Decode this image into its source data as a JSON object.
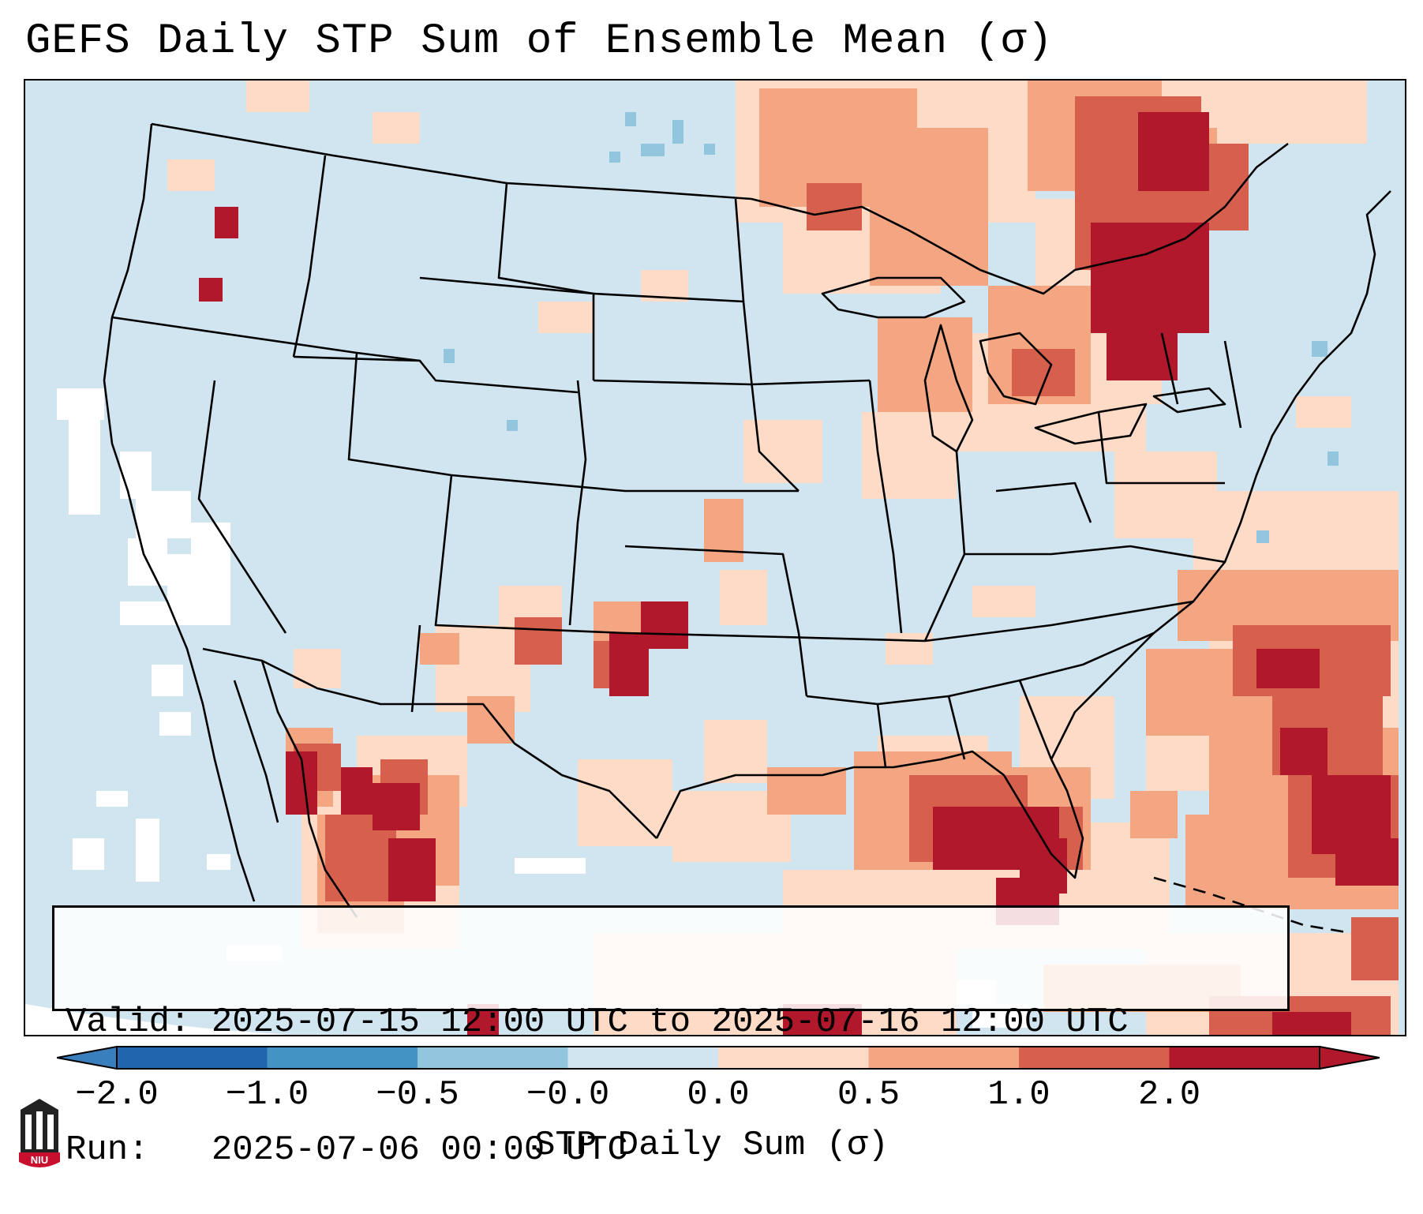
{
  "title": "GEFS Daily STP Sum of Ensemble Mean (σ)",
  "info": {
    "valid_label": "Valid:",
    "valid_value": "2025-07-15 12:00 UTC to 2025-07-16 12:00 UTC",
    "run_label": "Run:",
    "run_value": "2025-07-06 00:00 UTC"
  },
  "colorbar": {
    "label": "STP Daily Sum (σ)",
    "ticks": [
      "−2.0",
      "−1.0",
      "−0.5",
      "−0.0",
      "0.0",
      "0.5",
      "1.0",
      "2.0"
    ],
    "bin_colors": [
      "#2166ac",
      "#4393c3",
      "#92c5de",
      "#d1e5f0",
      "#fddbc7",
      "#f4a582",
      "#d6604d",
      "#b2182b"
    ],
    "extend_min_color": "#3a7fbd",
    "extend_max_color": "#b2182b"
  },
  "map": {
    "projection": "Lambert Conformal (CONUS)",
    "background_color": "#d1e5f0",
    "missing_color": "#ffffff",
    "border_color": "#000000"
  },
  "logo": {
    "text": "NIU",
    "colors": {
      "shield": "#c8102e",
      "tower": "#222222"
    }
  }
}
